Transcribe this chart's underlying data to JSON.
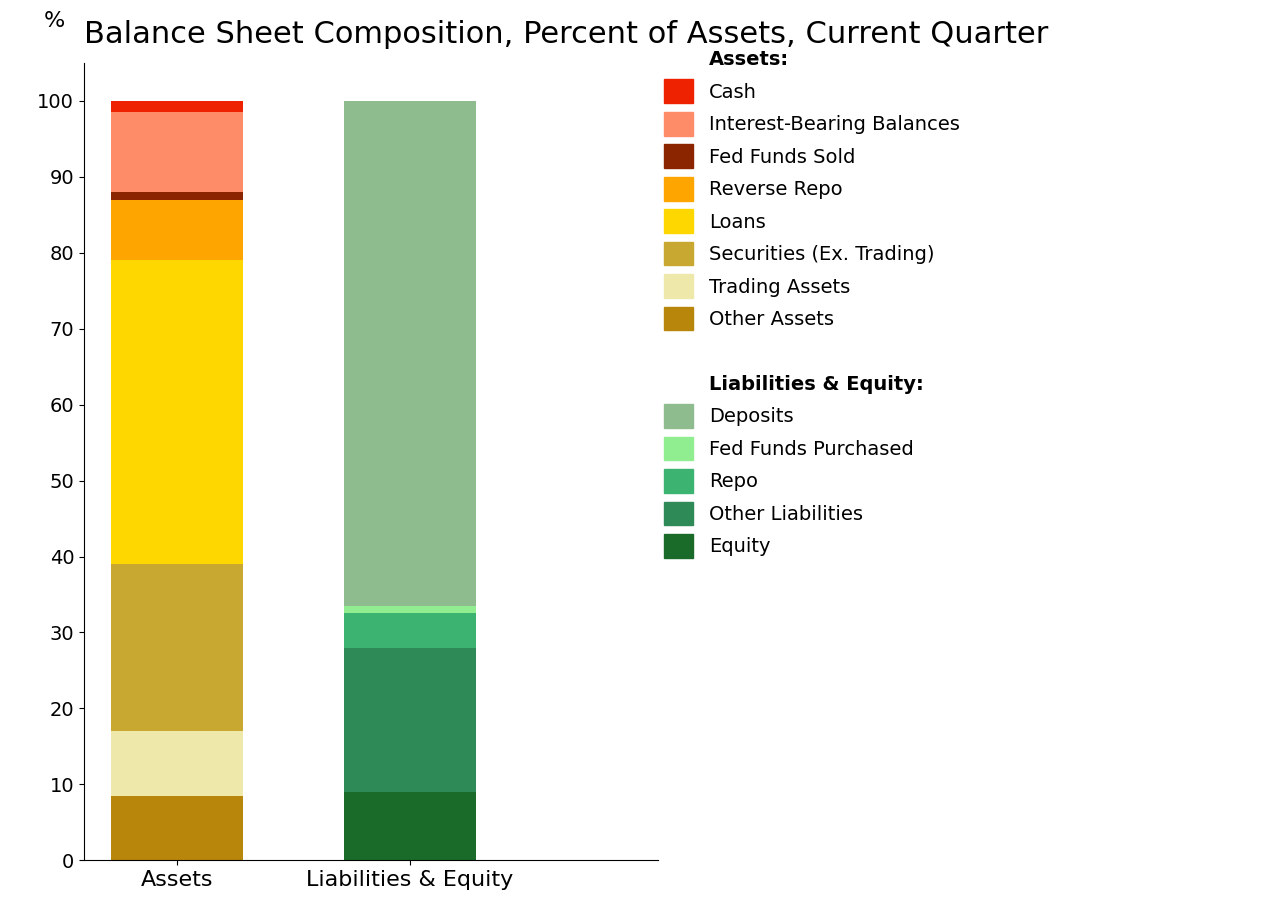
{
  "title": "Balance Sheet Composition, Percent of Assets, Current Quarter",
  "ylabel": "%",
  "categories": [
    "Assets",
    "Liabilities & Equity"
  ],
  "assets_segments": [
    {
      "label": "Other Assets",
      "value": 8.5,
      "color": "#B8860B"
    },
    {
      "label": "Trading Assets",
      "value": 8.5,
      "color": "#EEE8AA"
    },
    {
      "label": "Securities (Ex. Trading)",
      "value": 22.0,
      "color": "#C8A830"
    },
    {
      "label": "Loans",
      "value": 40.0,
      "color": "#FFD700"
    },
    {
      "label": "Reverse Repo",
      "value": 8.0,
      "color": "#FFA500"
    },
    {
      "label": "Fed Funds Sold",
      "value": 1.0,
      "color": "#8B2500"
    },
    {
      "label": "Interest-Bearing Balances",
      "value": 10.5,
      "color": "#FF8C69"
    },
    {
      "label": "Cash",
      "value": 1.5,
      "color": "#EE2200"
    }
  ],
  "liabilities_segments": [
    {
      "label": "Equity",
      "value": 9.0,
      "color": "#1A6B2A"
    },
    {
      "label": "Other Liabilities",
      "value": 19.0,
      "color": "#2E8B57"
    },
    {
      "label": "Repo",
      "value": 4.5,
      "color": "#3CB371"
    },
    {
      "label": "Fed Funds Purchased",
      "value": 1.0,
      "color": "#90EE90"
    },
    {
      "label": "Deposits",
      "value": 66.5,
      "color": "#8FBC8F"
    }
  ],
  "ylim": [
    0,
    105
  ],
  "yticks": [
    0,
    10,
    20,
    30,
    40,
    50,
    60,
    70,
    80,
    90,
    100
  ],
  "x_positions": [
    0.5,
    2.0
  ],
  "bar_width": 0.85,
  "xlim": [
    -0.1,
    3.6
  ],
  "background_color": "#FFFFFF",
  "title_fontsize": 22,
  "axis_fontsize": 16,
  "legend_fontsize": 14,
  "tick_fontsize": 14
}
